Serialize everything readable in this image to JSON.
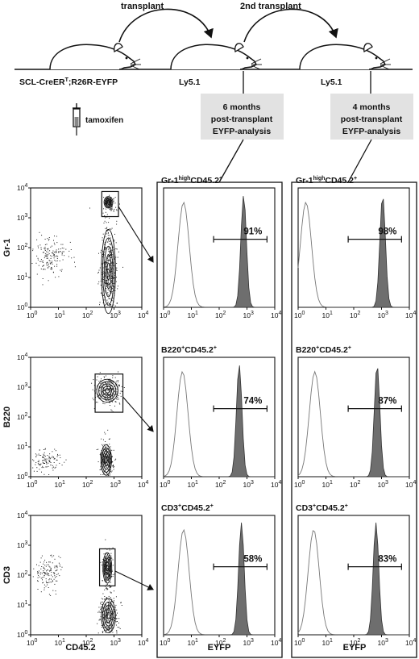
{
  "header": {
    "arrow1_label": "transplant",
    "arrow2_label": "2nd transplant",
    "mouse1_label": "SCL-CreER",
    "mouse1_sup": "T",
    "mouse1_label_rest": ";R26R-EYFP",
    "mouse2_label": "Ly5.1",
    "mouse3_label": "Ly5.1",
    "treatment_label": "tamoxifen",
    "box1": [
      "6 months",
      "post-transplant",
      "EYFP-analysis"
    ],
    "box2": [
      "4 months",
      "post-transplant",
      "EYFP-analysis"
    ],
    "box_color": "#e2e2e2"
  },
  "dotplots": {
    "x_axis_label": "CD45.2",
    "x_ticks": [
      "10",
      "10",
      "10",
      "10",
      "10"
    ],
    "x_tick_exps": [
      "0",
      "1",
      "2",
      "3",
      "4"
    ],
    "y_ticks": [
      "10",
      "10",
      "10",
      "10",
      "10"
    ],
    "y_tick_exps": [
      "0",
      "1",
      "2",
      "3",
      "4"
    ],
    "rows": [
      {
        "y_label": "Gr-1"
      },
      {
        "y_label": "B220"
      },
      {
        "y_label": "CD3"
      }
    ]
  },
  "histograms": {
    "x_axis_label": "EYFP",
    "x_ticks": [
      "10",
      "10",
      "10",
      "10",
      "10"
    ],
    "x_tick_exps": [
      "0",
      "1",
      "2",
      "3",
      "4"
    ],
    "fill_color": "#6e6e6e",
    "columns": [
      {
        "rows": [
          {
            "title_parts": [
              "Gr-1",
              "high",
              "CD45.2",
              "+"
            ],
            "percent": "91%"
          },
          {
            "title_parts": [
              "B220",
              "+",
              "CD45.2",
              "+"
            ],
            "percent": "74%"
          },
          {
            "title_parts": [
              "CD3",
              "+",
              "CD45.2",
              "+"
            ],
            "percent": "58%"
          }
        ]
      },
      {
        "rows": [
          {
            "title_parts": [
              "Gr-1",
              "high",
              "CD45.2",
              "+"
            ],
            "percent": "98%"
          },
          {
            "title_parts": [
              "B220",
              "+",
              "CD45.2",
              "+"
            ],
            "percent": "87%"
          },
          {
            "title_parts": [
              "CD3",
              "+",
              "CD45.2",
              "+"
            ],
            "percent": "83%"
          }
        ]
      }
    ]
  }
}
